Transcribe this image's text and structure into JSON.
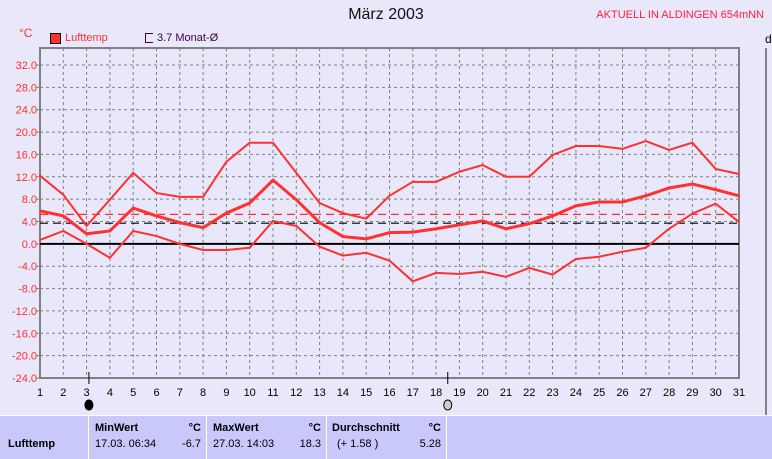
{
  "header": {
    "title": "März 2003",
    "station": "AKTUELL IN ALDINGEN 654mNN",
    "unit": "°C",
    "right_axis_label": "d"
  },
  "legend": [
    {
      "label": "Lufttemp",
      "color": "#ff3030"
    },
    {
      "label": "3.7 Monat-Ø",
      "color": "#400040"
    }
  ],
  "chart_data": {
    "type": "line",
    "title": "März 2003",
    "ylabel": "°C",
    "ylim": [
      -24,
      36
    ],
    "grid": true,
    "x": [
      1,
      2,
      3,
      4,
      5,
      6,
      7,
      8,
      9,
      10,
      11,
      12,
      13,
      14,
      15,
      16,
      17,
      18,
      19,
      20,
      21,
      22,
      23,
      24,
      25,
      26,
      27,
      28,
      29,
      30,
      31
    ],
    "yticks": [
      "32.0",
      "28.0",
      "24.0",
      "20.0",
      "16.0",
      "12.0",
      "8.0",
      "4.0",
      "0.0",
      "-4.0",
      "-8.0",
      "-12.0",
      "-16.0",
      "-20.0",
      "-24.0"
    ],
    "series": [
      {
        "role": "max",
        "color": "#ff3030",
        "values": [
          12.2,
          8.8,
          3.2,
          7.9,
          12.7,
          9.1,
          8.4,
          8.4,
          14.7,
          18.1,
          18.1,
          12.7,
          7.3,
          5.5,
          4.5,
          8.6,
          11.1,
          11.1,
          12.9,
          14.1,
          12,
          12,
          15.9,
          17.5,
          17.5,
          17,
          18.4,
          16.8,
          18.1,
          13.4,
          12.5
        ]
      },
      {
        "role": "mean",
        "color": "#ff3030",
        "values": [
          5.9,
          5,
          1.8,
          2.3,
          6.4,
          5,
          3.8,
          2.9,
          5.5,
          7.3,
          11.4,
          7.9,
          3.8,
          1.3,
          0.9,
          2,
          2.1,
          2.7,
          3.4,
          4.1,
          2.7,
          3.6,
          5,
          6.8,
          7.5,
          7.5,
          8.6,
          10,
          10.7,
          9.7,
          8.6
        ]
      },
      {
        "role": "min",
        "color": "#ff3030",
        "values": [
          0.7,
          2.3,
          0,
          -2.5,
          2.3,
          1.4,
          0,
          -1.1,
          -1.1,
          -0.7,
          4.1,
          3.2,
          -0.5,
          -2.1,
          -1.6,
          -3,
          -6.7,
          -5.2,
          -5.4,
          -5,
          -5.9,
          -4.3,
          -5.5,
          -2.7,
          -2.3,
          -1.4,
          -0.7,
          2.7,
          5.4,
          7.2,
          3.9
        ]
      }
    ],
    "reference_lines": [
      {
        "value": 5.28,
        "color": "#ff3030",
        "style": "dashed"
      },
      {
        "value": 3.7,
        "color": "#000000",
        "style": "dashed"
      }
    ],
    "moon_phases": [
      {
        "day": 3.1,
        "phase": "new-moon"
      },
      {
        "day": 18.5,
        "phase": "full-moon"
      }
    ]
  },
  "stats": {
    "row_label": "Lufttemp",
    "min": {
      "header": "MinWert",
      "unit": "°C",
      "time": "17.03.  06:34",
      "value": "-6.7"
    },
    "max": {
      "header": "MaxWert",
      "unit": "°C",
      "time": "27.03.  14:03",
      "value": "18.3"
    },
    "avg": {
      "header": "Durchschnitt",
      "unit": "°C",
      "diff": "(+ 1.58 )",
      "value": "5.28"
    }
  }
}
